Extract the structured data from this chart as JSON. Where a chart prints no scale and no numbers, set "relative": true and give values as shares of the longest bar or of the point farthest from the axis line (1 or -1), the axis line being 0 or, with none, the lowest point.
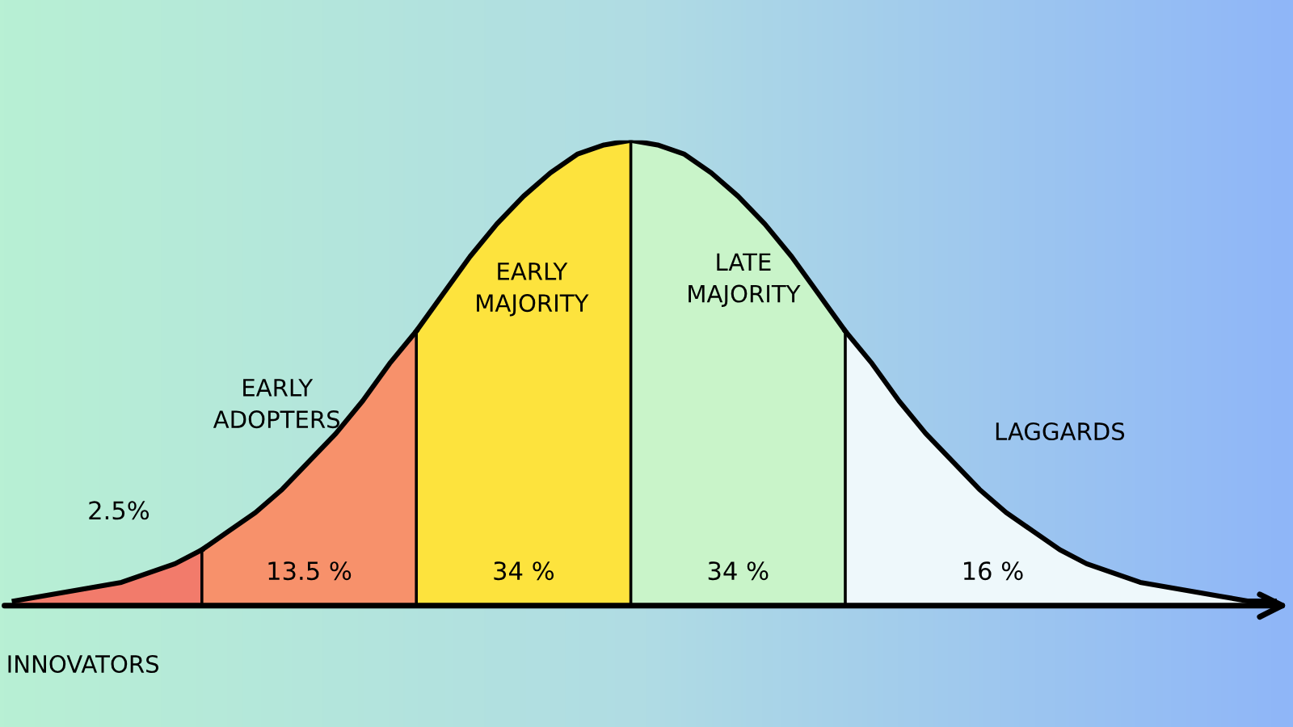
{
  "chart_data": {
    "type": "area",
    "relative": true,
    "legend": false,
    "categories": [
      null,
      null,
      null,
      null,
      null,
      null,
      null,
      null,
      null,
      null,
      null,
      null,
      null,
      null,
      null,
      null,
      null,
      null,
      null,
      null,
      null,
      null,
      null,
      null,
      null,
      null,
      null,
      null,
      null,
      null,
      null,
      null,
      null,
      null,
      null,
      null,
      null,
      null,
      null,
      null,
      null,
      null,
      null,
      null,
      null,
      null,
      null,
      null
    ],
    "series": [
      {
        "name": "INNOVATORS",
        "color": "#f27b6b",
        "values": [
          0.01,
          0.02,
          0.03,
          0.04,
          0.05,
          0.07,
          0.09,
          0.12,
          null,
          null,
          null,
          null,
          null,
          null,
          null,
          null,
          null,
          null,
          null,
          null,
          null,
          null,
          null,
          null,
          null,
          null,
          null,
          null,
          null,
          null,
          null,
          null,
          null,
          null,
          null,
          null,
          null,
          null,
          null,
          null,
          null,
          null,
          null,
          null,
          null,
          null,
          null,
          null
        ]
      },
      {
        "name": "EARLY\nADOPTERS",
        "color": "#f7916b",
        "values": [
          null,
          null,
          null,
          null,
          null,
          null,
          null,
          0.12,
          0.16,
          0.2,
          0.25,
          0.31,
          0.37,
          0.44,
          0.52,
          0.59,
          null,
          null,
          null,
          null,
          null,
          null,
          null,
          null,
          null,
          null,
          null,
          null,
          null,
          null,
          null,
          null,
          null,
          null,
          null,
          null,
          null,
          null,
          null,
          null,
          null,
          null,
          null,
          null,
          null,
          null,
          null,
          null
        ]
      },
      {
        "name": "EARLY\nMAJORITY",
        "color": "#fde33d",
        "values": [
          null,
          null,
          null,
          null,
          null,
          null,
          null,
          null,
          null,
          null,
          null,
          null,
          null,
          null,
          null,
          0.59,
          0.67,
          0.75,
          0.82,
          0.88,
          0.93,
          0.97,
          0.99,
          1,
          null,
          null,
          null,
          null,
          null,
          null,
          null,
          null,
          null,
          null,
          null,
          null,
          null,
          null,
          null,
          null,
          null,
          null,
          null,
          null,
          null,
          null,
          null,
          null
        ]
      },
      {
        "name": "LATE\nMAJORITY",
        "color": "#c9f4c9",
        "values": [
          null,
          null,
          null,
          null,
          null,
          null,
          null,
          null,
          null,
          null,
          null,
          null,
          null,
          null,
          null,
          null,
          null,
          null,
          null,
          null,
          null,
          null,
          null,
          1,
          0.99,
          0.97,
          0.93,
          0.88,
          0.82,
          0.75,
          0.67,
          0.59,
          null,
          null,
          null,
          null,
          null,
          null,
          null,
          null,
          null,
          null,
          null,
          null,
          null,
          null,
          null,
          null
        ]
      },
      {
        "name": "LAGGARDS",
        "color": "#eef8fb",
        "values": [
          null,
          null,
          null,
          null,
          null,
          null,
          null,
          null,
          null,
          null,
          null,
          null,
          null,
          null,
          null,
          null,
          null,
          null,
          null,
          null,
          null,
          null,
          null,
          null,
          null,
          null,
          null,
          null,
          null,
          null,
          null,
          0.59,
          0.52,
          0.44,
          0.37,
          0.31,
          0.25,
          0.2,
          0.16,
          0.12,
          0.09,
          0.07,
          0.05,
          0.04,
          0.03,
          0.02,
          0.01,
          0.01
        ]
      }
    ],
    "annotations": [
      "2.5%",
      "13.5 %",
      "34 %",
      "34 %",
      "16 %"
    ]
  }
}
